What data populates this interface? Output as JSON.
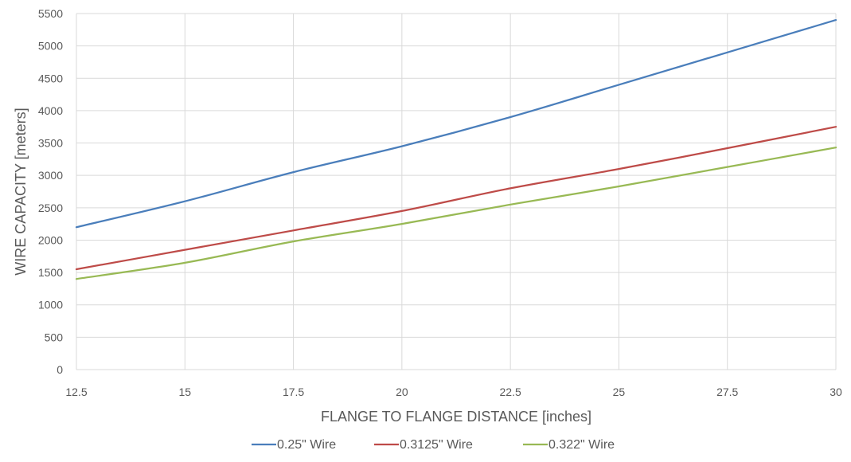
{
  "chart_data": {
    "type": "line",
    "title": "",
    "xlabel": "FLANGE TO FLANGE DISTANCE [inches]",
    "ylabel": "WIRE CAPACITY [meters]",
    "xlim": [
      12.5,
      30
    ],
    "ylim": [
      0,
      5500
    ],
    "x_ticks": [
      12.5,
      15,
      17.5,
      20,
      22.5,
      25,
      27.5,
      30
    ],
    "x_tick_labels": [
      "12.5",
      "15",
      "17.5",
      "20",
      "22.5",
      "25",
      "27.5",
      "30"
    ],
    "y_ticks": [
      0,
      500,
      1000,
      1500,
      2000,
      2500,
      3000,
      3500,
      4000,
      4500,
      5000,
      5500
    ],
    "y_tick_labels": [
      "0",
      "500",
      "1000",
      "1500",
      "2000",
      "2500",
      "3000",
      "3500",
      "4000",
      "4500",
      "5000",
      "5500"
    ],
    "grid": true,
    "legend_position": "bottom",
    "x": [
      12.5,
      15,
      17.5,
      20,
      22.5,
      25,
      27.5,
      30
    ],
    "series": [
      {
        "name": "0.25\" Wire",
        "color": "#4a7ebb",
        "values": [
          2200,
          2600,
          3050,
          3450,
          3900,
          4400,
          4900,
          5400
        ]
      },
      {
        "name": "0.3125\" Wire",
        "color": "#be4b48",
        "values": [
          1550,
          1850,
          2150,
          2450,
          2800,
          3100,
          3420,
          3750
        ]
      },
      {
        "name": "0.322\" Wire",
        "color": "#98b954",
        "values": [
          1400,
          1650,
          1980,
          2250,
          2550,
          2830,
          3130,
          3430
        ]
      }
    ]
  }
}
